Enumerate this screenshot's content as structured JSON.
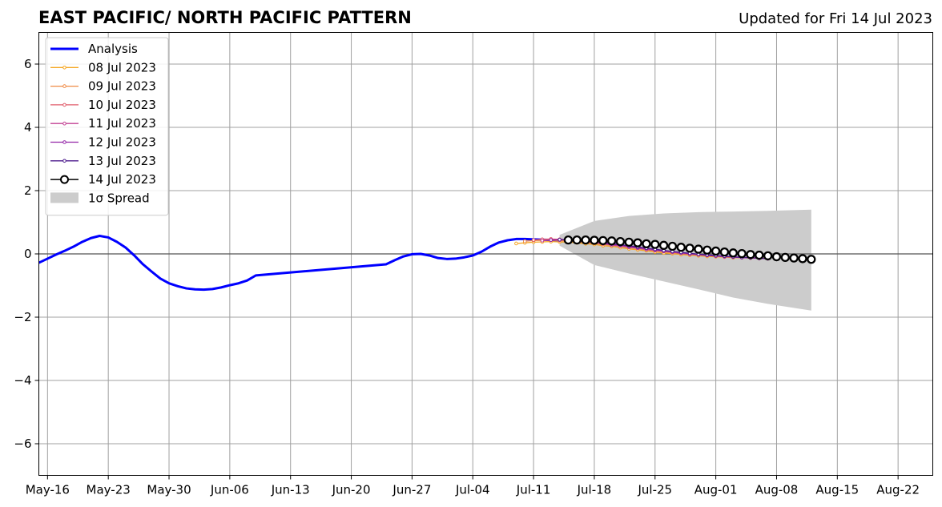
{
  "chart_data": {
    "type": "line",
    "title": "EAST PACIFIC/ NORTH PACIFIC PATTERN",
    "subtitle": "Updated for Fri 14 Jul 2023",
    "xlabel": "",
    "ylabel": "",
    "x_range": [
      "2023-05-15",
      "2023-08-26"
    ],
    "ylim": [
      -7,
      7
    ],
    "y_ticks": [
      -6,
      -4,
      -2,
      0,
      2,
      4,
      6
    ],
    "y_tick_labels": [
      "−6",
      "−4",
      "−2",
      "0",
      "2",
      "4",
      "6"
    ],
    "x_ticks": [
      "2023-05-16",
      "2023-05-23",
      "2023-05-30",
      "2023-06-06",
      "2023-06-13",
      "2023-06-20",
      "2023-06-27",
      "2023-07-04",
      "2023-07-11",
      "2023-07-18",
      "2023-07-25",
      "2023-08-01",
      "2023-08-08",
      "2023-08-15",
      "2023-08-22"
    ],
    "x_tick_labels": [
      "May-16",
      "May-23",
      "May-30",
      "Jun-06",
      "Jun-13",
      "Jun-20",
      "Jun-27",
      "Jul-04",
      "Jul-11",
      "Jul-18",
      "Jul-25",
      "Aug-01",
      "Aug-08",
      "Aug-15",
      "Aug-22"
    ],
    "grid": true,
    "zero_line": true,
    "legend_position": "upper-left",
    "analysis": {
      "name": "Analysis",
      "color": "#0000ff",
      "x": [
        "2023-05-15",
        "2023-05-16",
        "2023-05-17",
        "2023-05-18",
        "2023-05-19",
        "2023-05-20",
        "2023-05-21",
        "2023-05-22",
        "2023-05-23",
        "2023-05-24",
        "2023-05-25",
        "2023-05-26",
        "2023-05-27",
        "2023-05-28",
        "2023-05-29",
        "2023-05-30",
        "2023-05-31",
        "2023-06-01",
        "2023-06-02",
        "2023-06-03",
        "2023-06-04",
        "2023-06-05",
        "2023-06-06",
        "2023-06-07",
        "2023-06-08",
        "2023-06-09",
        "2023-06-24",
        "2023-06-25",
        "2023-06-26",
        "2023-06-27",
        "2023-06-28",
        "2023-06-29",
        "2023-06-30",
        "2023-07-01",
        "2023-07-02",
        "2023-07-03",
        "2023-07-04",
        "2023-07-05",
        "2023-07-06",
        "2023-07-07",
        "2023-07-08",
        "2023-07-09",
        "2023-07-10",
        "2023-07-11",
        "2023-07-12",
        "2023-07-13",
        "2023-07-14"
      ],
      "y": [
        -0.28,
        -0.15,
        -0.02,
        0.1,
        0.23,
        0.38,
        0.5,
        0.57,
        0.52,
        0.38,
        0.2,
        -0.05,
        -0.33,
        -0.56,
        -0.78,
        -0.93,
        -1.02,
        -1.09,
        -1.12,
        -1.13,
        -1.11,
        -1.06,
        -0.99,
        -0.93,
        -0.84,
        -0.68,
        -0.33,
        -0.2,
        -0.08,
        -0.01,
        0.0,
        -0.05,
        -0.13,
        -0.16,
        -0.15,
        -0.11,
        -0.05,
        0.07,
        0.23,
        0.36,
        0.43,
        0.47,
        0.47,
        0.46,
        0.45,
        0.44,
        0.43
      ]
    },
    "spread": {
      "name": "1σ Spread",
      "color": "#cccccc",
      "x": [
        "2023-07-14",
        "2023-07-18",
        "2023-07-22",
        "2023-07-26",
        "2023-07-30",
        "2023-08-03",
        "2023-08-07",
        "2023-08-12"
      ],
      "upper": [
        0.6,
        1.04,
        1.2,
        1.28,
        1.32,
        1.34,
        1.36,
        1.4
      ],
      "lower": [
        0.26,
        -0.35,
        -0.62,
        -0.87,
        -1.12,
        -1.38,
        -1.58,
        -1.79
      ]
    },
    "series": [
      {
        "name": "08 Jul 2023",
        "color": "#f5a623",
        "marker": "small-circle",
        "x": [
          "2023-07-09",
          "2023-07-10",
          "2023-07-11",
          "2023-07-12",
          "2023-07-13",
          "2023-07-14",
          "2023-07-15",
          "2023-07-16",
          "2023-07-17",
          "2023-07-18",
          "2023-07-19",
          "2023-07-20",
          "2023-07-21",
          "2023-07-22",
          "2023-07-23",
          "2023-07-24",
          "2023-07-25",
          "2023-07-26",
          "2023-07-27",
          "2023-07-28",
          "2023-07-29",
          "2023-07-30",
          "2023-07-31",
          "2023-08-01",
          "2023-08-02",
          "2023-08-03",
          "2023-08-04",
          "2023-08-05",
          "2023-08-06",
          "2023-08-07"
        ],
        "y": [
          0.33,
          0.35,
          0.37,
          0.38,
          0.39,
          0.38,
          0.37,
          0.35,
          0.32,
          0.3,
          0.26,
          0.24,
          0.2,
          0.16,
          0.13,
          0.1,
          0.06,
          0.03,
          0.01,
          -0.02,
          -0.04,
          -0.06,
          -0.08,
          -0.09,
          -0.1,
          -0.12,
          -0.12,
          -0.13,
          -0.14,
          -0.15
        ]
      },
      {
        "name": "09 Jul 2023",
        "color": "#f08a45",
        "marker": "small-circle",
        "x": [
          "2023-07-10",
          "2023-07-11",
          "2023-07-12",
          "2023-07-13",
          "2023-07-14",
          "2023-07-15",
          "2023-07-16",
          "2023-07-17",
          "2023-07-18",
          "2023-07-19",
          "2023-07-20",
          "2023-07-21",
          "2023-07-22",
          "2023-07-23",
          "2023-07-24",
          "2023-07-25",
          "2023-07-26",
          "2023-07-27",
          "2023-07-28",
          "2023-07-29",
          "2023-07-30",
          "2023-07-31",
          "2023-08-01",
          "2023-08-02",
          "2023-08-03",
          "2023-08-04",
          "2023-08-05",
          "2023-08-06",
          "2023-08-07"
        ],
        "y": [
          0.4,
          0.42,
          0.43,
          0.43,
          0.42,
          0.4,
          0.38,
          0.35,
          0.33,
          0.3,
          0.27,
          0.24,
          0.2,
          0.17,
          0.13,
          0.1,
          0.07,
          0.04,
          0.02,
          -0.01,
          -0.03,
          -0.05,
          -0.07,
          -0.09,
          -0.1,
          -0.11,
          -0.12,
          -0.13,
          -0.14
        ]
      },
      {
        "name": "10 Jul 2023",
        "color": "#e05c6b",
        "marker": "small-circle",
        "x": [
          "2023-07-11",
          "2023-07-12",
          "2023-07-13",
          "2023-07-14",
          "2023-07-15",
          "2023-07-16",
          "2023-07-17",
          "2023-07-18",
          "2023-07-19",
          "2023-07-20",
          "2023-07-21",
          "2023-07-22",
          "2023-07-23",
          "2023-07-24",
          "2023-07-25",
          "2023-07-26",
          "2023-07-27",
          "2023-07-28",
          "2023-07-29",
          "2023-07-30",
          "2023-07-31",
          "2023-08-01",
          "2023-08-02",
          "2023-08-03",
          "2023-08-04",
          "2023-08-05",
          "2023-08-06",
          "2023-08-07"
        ],
        "y": [
          0.44,
          0.46,
          0.47,
          0.46,
          0.45,
          0.42,
          0.39,
          0.36,
          0.33,
          0.29,
          0.26,
          0.22,
          0.18,
          0.15,
          0.11,
          0.08,
          0.05,
          0.02,
          -0.01,
          -0.03,
          -0.05,
          -0.07,
          -0.09,
          -0.1,
          -0.11,
          -0.13,
          -0.14,
          -0.15
        ]
      },
      {
        "name": "11 Jul 2023",
        "color": "#c24193",
        "marker": "small-circle",
        "x": [
          "2023-07-12",
          "2023-07-13",
          "2023-07-14",
          "2023-07-15",
          "2023-07-16",
          "2023-07-17",
          "2023-07-18",
          "2023-07-19",
          "2023-07-20",
          "2023-07-21",
          "2023-07-22",
          "2023-07-23",
          "2023-07-24",
          "2023-07-25",
          "2023-07-26",
          "2023-07-27",
          "2023-07-28",
          "2023-07-29",
          "2023-07-30",
          "2023-07-31",
          "2023-08-01",
          "2023-08-02",
          "2023-08-03",
          "2023-08-04",
          "2023-08-05",
          "2023-08-06",
          "2023-08-07"
        ],
        "y": [
          0.42,
          0.44,
          0.44,
          0.43,
          0.41,
          0.38,
          0.35,
          0.32,
          0.28,
          0.25,
          0.21,
          0.18,
          0.14,
          0.11,
          0.08,
          0.05,
          0.02,
          -0.01,
          -0.03,
          -0.05,
          -0.07,
          -0.09,
          -0.1,
          -0.12,
          -0.13,
          -0.14,
          -0.15
        ]
      },
      {
        "name": "12 Jul 2023",
        "color": "#9224a8",
        "marker": "small-circle",
        "x": [
          "2023-07-13",
          "2023-07-14",
          "2023-07-15",
          "2023-07-16",
          "2023-07-17",
          "2023-07-18",
          "2023-07-19",
          "2023-07-20",
          "2023-07-21",
          "2023-07-22",
          "2023-07-23",
          "2023-07-24",
          "2023-07-25",
          "2023-07-26",
          "2023-07-27",
          "2023-07-28",
          "2023-07-29",
          "2023-07-30",
          "2023-07-31",
          "2023-08-01",
          "2023-08-02",
          "2023-08-03",
          "2023-08-04",
          "2023-08-05",
          "2023-08-06",
          "2023-08-07"
        ],
        "y": [
          0.44,
          0.45,
          0.45,
          0.43,
          0.41,
          0.38,
          0.35,
          0.31,
          0.28,
          0.24,
          0.2,
          0.17,
          0.13,
          0.1,
          0.07,
          0.04,
          0.01,
          -0.01,
          -0.04,
          -0.06,
          -0.08,
          -0.1,
          -0.11,
          -0.12,
          -0.14,
          -0.15
        ]
      },
      {
        "name": "13 Jul 2023",
        "color": "#4b1a8c",
        "marker": "small-circle",
        "x": [
          "2023-07-14",
          "2023-07-15",
          "2023-07-16",
          "2023-07-17",
          "2023-07-18",
          "2023-07-19",
          "2023-07-20",
          "2023-07-21",
          "2023-07-22",
          "2023-07-23",
          "2023-07-24",
          "2023-07-25",
          "2023-07-26",
          "2023-07-27",
          "2023-07-28",
          "2023-07-29",
          "2023-07-30",
          "2023-07-31",
          "2023-08-01",
          "2023-08-02",
          "2023-08-03",
          "2023-08-04",
          "2023-08-05",
          "2023-08-06",
          "2023-08-07"
        ],
        "y": [
          0.45,
          0.45,
          0.44,
          0.42,
          0.39,
          0.36,
          0.33,
          0.29,
          0.26,
          0.22,
          0.18,
          0.15,
          0.11,
          0.08,
          0.05,
          0.02,
          -0.01,
          -0.03,
          -0.05,
          -0.07,
          -0.09,
          -0.11,
          -0.12,
          -0.13,
          -0.15
        ]
      },
      {
        "name": "14 Jul 2023",
        "color": "#000000",
        "marker": "open-circle",
        "x": [
          "2023-07-15",
          "2023-07-16",
          "2023-07-17",
          "2023-07-18",
          "2023-07-19",
          "2023-07-20",
          "2023-07-21",
          "2023-07-22",
          "2023-07-23",
          "2023-07-24",
          "2023-07-25",
          "2023-07-26",
          "2023-07-27",
          "2023-07-28",
          "2023-07-29",
          "2023-07-30",
          "2023-07-31",
          "2023-08-01",
          "2023-08-02",
          "2023-08-03",
          "2023-08-04",
          "2023-08-05",
          "2023-08-06",
          "2023-08-07",
          "2023-08-08",
          "2023-08-09",
          "2023-08-10",
          "2023-08-11",
          "2023-08-12"
        ],
        "y": [
          0.44,
          0.44,
          0.44,
          0.43,
          0.42,
          0.41,
          0.39,
          0.37,
          0.35,
          0.32,
          0.3,
          0.27,
          0.24,
          0.21,
          0.18,
          0.15,
          0.12,
          0.09,
          0.06,
          0.03,
          0.01,
          -0.02,
          -0.04,
          -0.06,
          -0.09,
          -0.11,
          -0.13,
          -0.15,
          -0.17
        ]
      }
    ]
  }
}
